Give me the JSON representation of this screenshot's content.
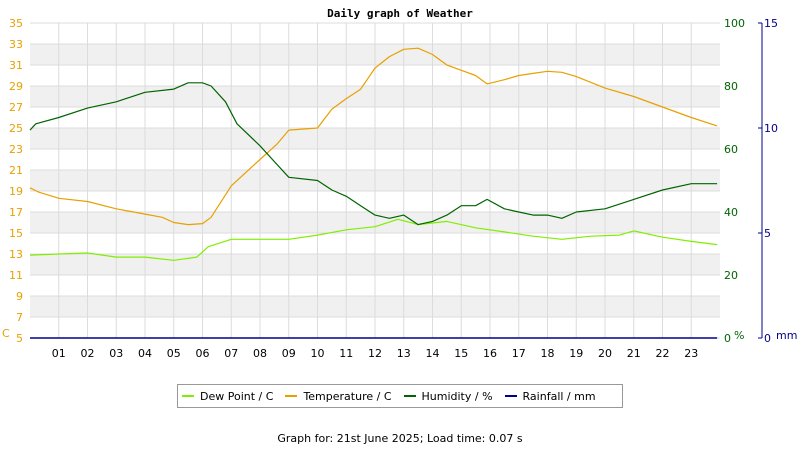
{
  "chart_data": {
    "type": "line",
    "title": "Daily graph of Weather",
    "x_ticks": [
      "01",
      "02",
      "03",
      "04",
      "05",
      "06",
      "07",
      "08",
      "09",
      "10",
      "11",
      "12",
      "13",
      "14",
      "15",
      "16",
      "17",
      "18",
      "19",
      "20",
      "21",
      "22",
      "23"
    ],
    "x_range": [
      0,
      24
    ],
    "left_axis": {
      "unit": "C",
      "range": [
        5,
        35
      ],
      "ticks": [
        5,
        7,
        9,
        11,
        13,
        15,
        17,
        19,
        21,
        23,
        25,
        27,
        29,
        31,
        33,
        35
      ],
      "color": "#e8a000"
    },
    "right_axis_humidity": {
      "unit": "%",
      "range": [
        0,
        100
      ],
      "ticks": [
        0,
        20,
        40,
        60,
        80,
        100
      ],
      "color": "#006400"
    },
    "right_axis_rain": {
      "unit": "mm",
      "range": [
        0,
        15
      ],
      "ticks": [
        0,
        5,
        10,
        15
      ],
      "color": "#00008b"
    },
    "grid": true,
    "legend_position": "bottom",
    "series": [
      {
        "name": "Dew Point / C",
        "axis": "left",
        "color": "#80ee00",
        "x": [
          0,
          1,
          2,
          3,
          4,
          5,
          5.8,
          6.2,
          7,
          8,
          9,
          10,
          11,
          12,
          12.8,
          13.5,
          14.5,
          15.5,
          16.5,
          17.5,
          18.5,
          19.5,
          20.5,
          21,
          22,
          23,
          23.9
        ],
        "y": [
          12.9,
          13.0,
          13.1,
          12.7,
          12.7,
          12.4,
          12.7,
          13.7,
          14.4,
          14.4,
          14.4,
          14.8,
          15.3,
          15.6,
          16.3,
          15.8,
          16.1,
          15.5,
          15.1,
          14.7,
          14.4,
          14.7,
          14.8,
          15.2,
          14.6,
          14.2,
          13.9
        ]
      },
      {
        "name": "Temperature / C",
        "axis": "left",
        "color": "#e8a000",
        "x": [
          0,
          0.3,
          1,
          2,
          3,
          4,
          4.6,
          5,
          5.5,
          6,
          6.3,
          7,
          8,
          8.6,
          9,
          10,
          10.5,
          11,
          11.5,
          12,
          12.5,
          13,
          13.5,
          14,
          14.5,
          15,
          15.5,
          15.9,
          16.5,
          17,
          17.5,
          18,
          18.5,
          19,
          20,
          21,
          22,
          23,
          23.9
        ],
        "y": [
          19.3,
          18.9,
          18.3,
          18.0,
          17.3,
          16.8,
          16.5,
          16.0,
          15.8,
          15.9,
          16.5,
          19.5,
          22.0,
          23.5,
          24.8,
          25.0,
          26.8,
          27.8,
          28.7,
          30.7,
          31.8,
          32.5,
          32.6,
          32.0,
          31.0,
          30.5,
          30.0,
          29.2,
          29.6,
          30.0,
          30.2,
          30.4,
          30.3,
          29.9,
          28.8,
          28.0,
          27.0,
          26.0,
          25.2
        ]
      },
      {
        "name": "Humidity / %",
        "axis": "right",
        "color": "#006400",
        "x": [
          0,
          0.2,
          1,
          2,
          3,
          4,
          5,
          5.5,
          6,
          6.3,
          6.8,
          7.2,
          8,
          8.5,
          9,
          10,
          10.5,
          11,
          11.5,
          12,
          12.5,
          13,
          13.5,
          14,
          14.5,
          15,
          15.5,
          15.9,
          16.5,
          17,
          17.5,
          18,
          18.5,
          19,
          20,
          21,
          22,
          23,
          23.9
        ],
        "y": [
          66,
          68,
          70,
          73,
          75,
          78,
          79,
          81,
          81,
          80,
          75,
          68,
          61,
          56,
          51,
          50,
          47,
          45,
          42,
          39,
          38,
          39,
          36,
          37,
          39,
          42,
          42,
          44,
          41,
          40,
          39,
          39,
          38,
          40,
          41,
          44,
          47,
          49,
          49
        ]
      },
      {
        "name": "Rainfall / mm",
        "axis": "rain",
        "color": "#00008b",
        "x": [
          0,
          23.9
        ],
        "y": [
          0,
          0
        ]
      }
    ]
  },
  "footer": "Graph for: 21st June 2025; Load time: 0.07 s"
}
